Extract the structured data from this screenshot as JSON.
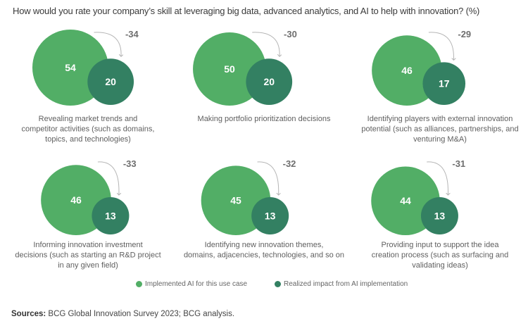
{
  "title": "How would you rate your company’s skill at leveraging big data, advanced analytics, and AI to help with innovation? (%)",
  "colors": {
    "implemented": "#52ae66",
    "realized": "#338062",
    "delta_text": "#6e6e6e",
    "arrow": "#b5b5b5",
    "caption": "#5f5f5f"
  },
  "chart_data": {
    "type": "bubble-comparison",
    "title": "How would you rate your company’s skill at leveraging big data, advanced analytics, and AI to help with innovation? (%)",
    "unit": "%",
    "series": [
      {
        "name": "Implemented AI for this use case",
        "values": [
          54,
          50,
          46,
          46,
          45,
          44
        ]
      },
      {
        "name": "Realized impact from AI implementation",
        "values": [
          20,
          20,
          17,
          13,
          13,
          13
        ]
      }
    ],
    "categories": [
      "Revealing market trends and competitor activities (such as domains, topics, and technologies)",
      "Making portfolio prioritization decisions",
      "Identifying players with external innovation potential (such as alliances, partnerships, and venturing M&A)",
      "Informing innovation investment decisions (such as starting an R&D project in any given field)",
      "Identifying new innovation themes, domains, adjacencies, technologies, and so on",
      "Providing input to support the idea creation process (such as surfacing and validating ideas)"
    ],
    "differences": [
      -34,
      -30,
      -29,
      -33,
      -32,
      -31
    ],
    "legend_position": "bottom-center"
  },
  "panels": [
    {
      "implemented": 54,
      "realized": 20,
      "delta": "-34",
      "caption": [
        "Revealing market trends and",
        "competitor activities (such as domains,",
        "topics, and technologies)"
      ]
    },
    {
      "implemented": 50,
      "realized": 20,
      "delta": "-30",
      "caption": [
        "Making portfolio prioritization decisions"
      ]
    },
    {
      "implemented": 46,
      "realized": 17,
      "delta": "-29",
      "caption": [
        "Identifying players with external innovation",
        "potential (such as alliances, partnerships, and",
        "venturing M&A)"
      ]
    },
    {
      "implemented": 46,
      "realized": 13,
      "delta": "-33",
      "caption": [
        "Informing innovation investment",
        "decisions (such as starting an R&D project",
        "in any given field)"
      ]
    },
    {
      "implemented": 45,
      "realized": 13,
      "delta": "-32",
      "caption": [
        "Identifying new innovation themes,",
        "domains, adjacencies, technologies, and so on"
      ]
    },
    {
      "implemented": 44,
      "realized": 13,
      "delta": "-31",
      "caption": [
        "Providing input to support the idea",
        "creation process (such as surfacing and",
        "validating ideas)"
      ]
    }
  ],
  "legend": {
    "items": [
      {
        "label": "Implemented AI for this use case"
      },
      {
        "label": "Realized impact from AI implementation"
      }
    ]
  },
  "sources": {
    "label": "Sources:",
    "text": " BCG Global Innovation Survey 2023; BCG analysis."
  }
}
